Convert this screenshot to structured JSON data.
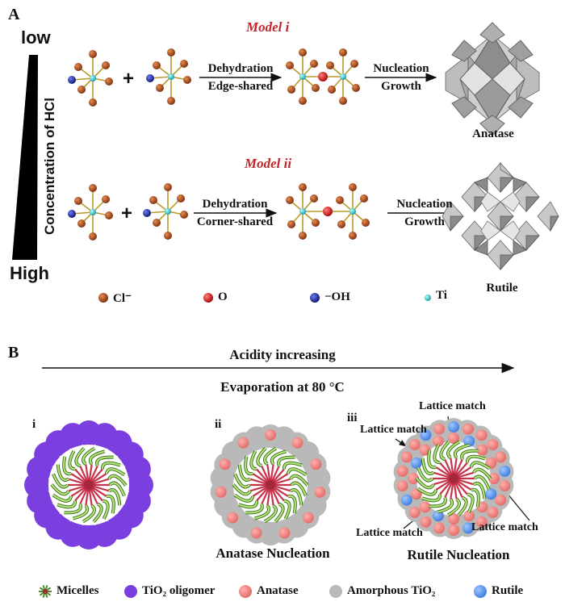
{
  "panelA": {
    "letter": "A",
    "low": "low",
    "high": "High",
    "axis_label": "Concentration of HCl",
    "model1": {
      "title": "Model i",
      "step1_line1": "Dehydration",
      "step1_line2": "Edge-shared",
      "step2_line1": "Nucleation",
      "step2_line2": "Growth",
      "product": "Anatase"
    },
    "model2": {
      "title": "Model ii",
      "step1_line1": "Dehydration",
      "step1_line2": "Corner-shared",
      "step2_line1": "Nucleation",
      "step2_line2": "Growth",
      "product": "Rutile"
    },
    "plus": "+",
    "legend": [
      {
        "label": "Cl⁻",
        "color": "#a8461a"
      },
      {
        "label": "O",
        "color": "#d81e1e"
      },
      {
        "label": "−OH",
        "color": "#1b2fa8"
      },
      {
        "label": "Ti",
        "color": "#22c3cc"
      }
    ]
  },
  "panelB": {
    "letter": "B",
    "arrow_top": "Acidity increasing",
    "arrow_bottom": "Evaporation at 80 °C",
    "stage_i": "i",
    "stage_ii": "ii",
    "stage_iii": "iii",
    "caption_ii": "Anatase Nucleation",
    "caption_iii": "Rutile Nucleation",
    "lattice_match": "Lattice match",
    "legend": [
      {
        "label": "Micelles"
      },
      {
        "label": "TiO₂ oligomer",
        "color": "#7b3fe0"
      },
      {
        "label": "Anatase",
        "color": "#f28a86"
      },
      {
        "label": "Amorphous TiO₂",
        "color": "#b9b9b9"
      },
      {
        "label": "Rutile",
        "color": "#5b9bf0"
      }
    ]
  },
  "colors": {
    "cl": "#a8461a",
    "o": "#d81e1e",
    "oh": "#1b2fa8",
    "ti": "#22c3cc",
    "oligomer": "#7b3fe0",
    "anatase": "#f28a86",
    "amorphous": "#b9b9b9",
    "rutile": "#5b9bf0",
    "model_title": "#c0262b"
  }
}
